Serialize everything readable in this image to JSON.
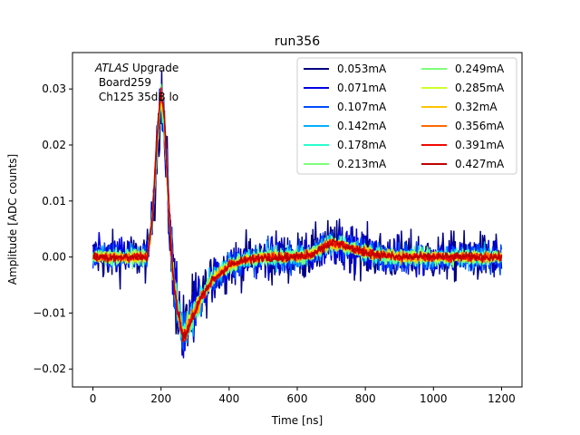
{
  "chart_data": {
    "type": "line",
    "title": "run356",
    "xlabel": "Time [ns]",
    "ylabel": "Amplitude [ADC counts]",
    "xlim": [
      -60,
      1260
    ],
    "ylim": [
      -0.0232,
      0.0365
    ],
    "xticks": [
      0,
      200,
      400,
      600,
      800,
      1000,
      1200
    ],
    "xtick_labels": [
      "0",
      "200",
      "400",
      "600",
      "800",
      "1000",
      "1200"
    ],
    "yticks": [
      -0.02,
      -0.01,
      0.0,
      0.01,
      0.02,
      0.03
    ],
    "ytick_labels": [
      "−0.02",
      "−0.01",
      "0.00",
      "0.01",
      "0.02",
      "0.03"
    ],
    "grid": false,
    "legend_position": "top-right",
    "legend_columns": 2,
    "annotations": [
      {
        "italic": "ATLAS",
        "text": " Upgrade"
      },
      {
        "italic": "",
        "text": " Board259"
      },
      {
        "italic": "",
        "text": " Ch125 35dB lo"
      }
    ],
    "shape_x_ns": [
      0,
      160,
      175,
      190,
      200,
      210,
      220,
      235,
      250,
      265,
      275,
      285,
      300,
      320,
      350,
      400,
      450,
      500,
      550,
      600,
      640,
      670,
      700,
      730,
      760,
      800,
      850,
      900,
      1000,
      1100,
      1200
    ],
    "shape_y_adc": [
      0.0,
      0.0,
      0.007,
      0.022,
      0.029,
      0.024,
      0.012,
      -0.003,
      -0.01,
      -0.014,
      -0.013,
      -0.0115,
      -0.0095,
      -0.007,
      -0.004,
      -0.0015,
      -0.0005,
      0.0,
      0.0,
      0.0,
      0.0005,
      0.0015,
      0.0025,
      0.0022,
      0.0015,
      0.0008,
      0.0003,
      0.0,
      0.0,
      0.0,
      0.0
    ],
    "series": [
      {
        "name": "0.053mA",
        "color": "#00007f",
        "noise_adc": 0.0022
      },
      {
        "name": "0.071mA",
        "color": "#0000e3",
        "noise_adc": 0.0018
      },
      {
        "name": "0.107mA",
        "color": "#004cff",
        "noise_adc": 0.0013
      },
      {
        "name": "0.142mA",
        "color": "#00b0ff",
        "noise_adc": 0.001
      },
      {
        "name": "0.178mA",
        "color": "#29ffce",
        "noise_adc": 0.0008
      },
      {
        "name": "0.213mA",
        "color": "#7dff7a",
        "noise_adc": 0.0007
      },
      {
        "name": "0.249mA",
        "color": "#7dff7a",
        "noise_adc": 0.0006
      },
      {
        "name": "0.285mA",
        "color": "#ceff29",
        "noise_adc": 0.0005
      },
      {
        "name": "0.32mA",
        "color": "#ffc400",
        "noise_adc": 0.0005
      },
      {
        "name": "0.356mA",
        "color": "#ff6800",
        "noise_adc": 0.0004
      },
      {
        "name": "0.391mA",
        "color": "#f10800",
        "noise_adc": 0.0004
      },
      {
        "name": "0.427mA",
        "color": "#c00000",
        "noise_adc": 0.0004
      }
    ]
  }
}
